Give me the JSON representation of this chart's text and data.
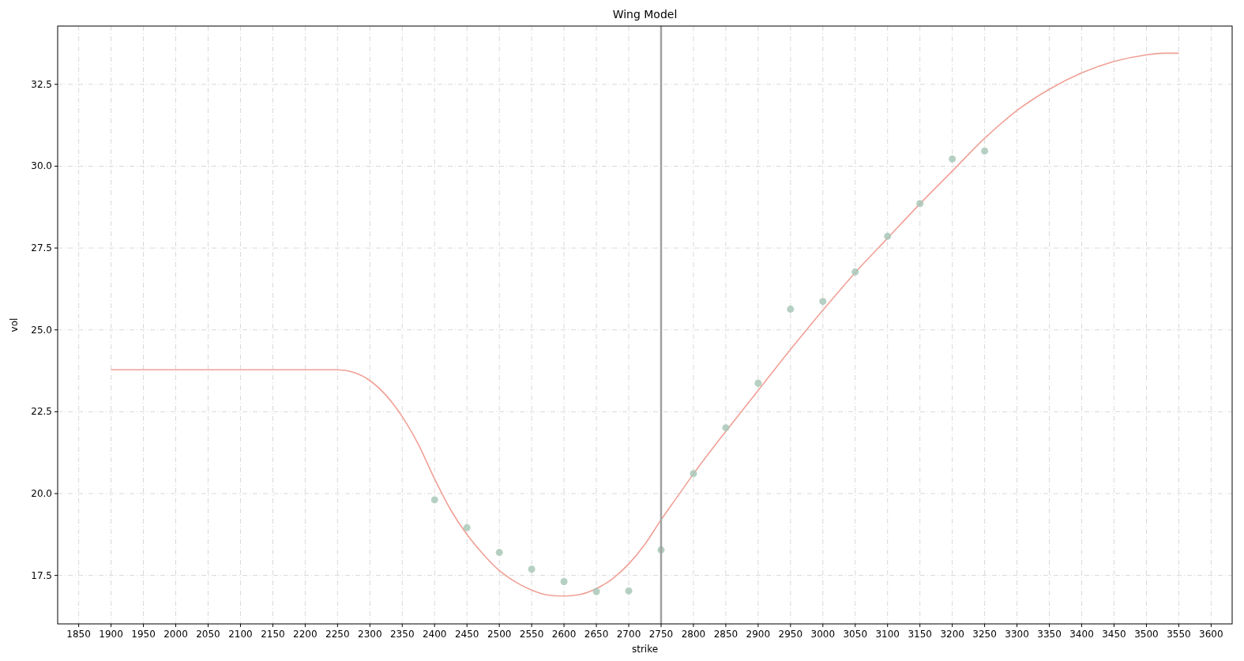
{
  "chart_data": {
    "type": "scatter",
    "title": "Wing Model",
    "xlabel": "strike",
    "ylabel": "vol",
    "xlim": [
      1817.5,
      3632.5
    ],
    "ylim": [
      16.02,
      34.28
    ],
    "xticks": [
      1850,
      1900,
      1950,
      2000,
      2050,
      2100,
      2150,
      2200,
      2250,
      2300,
      2350,
      2400,
      2450,
      2500,
      2550,
      2600,
      2650,
      2700,
      2750,
      2800,
      2850,
      2900,
      2950,
      3000,
      3050,
      3100,
      3150,
      3200,
      3250,
      3300,
      3350,
      3400,
      3450,
      3500,
      3550,
      3600
    ],
    "yticks": [
      17.5,
      {
        "value": 20,
        "label": "20.0"
      },
      22.5,
      {
        "value": 25,
        "label": "25.0"
      },
      27.5,
      {
        "value": 30,
        "label": "30.0"
      },
      32.5
    ],
    "grid": true,
    "series": [
      {
        "type": "line",
        "color": "#f0a096",
        "line_style": "solid",
        "x": [
          1900,
          2250,
          2275,
          2300,
          2325,
          2350,
          2375,
          2400,
          2425,
          2450,
          2475,
          2500,
          2525,
          2550,
          2575,
          2600,
          2625,
          2650,
          2675,
          2700,
          2725,
          2750,
          2775,
          2800,
          2850,
          2900,
          2950,
          3000,
          3050,
          3100,
          3150,
          3200,
          3250,
          3300,
          3350,
          3400,
          3450,
          3500,
          3525,
          3550
        ],
        "values": [
          23.78,
          23.78,
          23.7,
          23.45,
          23.0,
          22.35,
          21.5,
          20.45,
          19.5,
          18.75,
          18.15,
          17.65,
          17.3,
          17.05,
          16.9,
          16.87,
          16.92,
          17.1,
          17.4,
          17.85,
          18.45,
          19.2,
          19.9,
          20.6,
          21.9,
          23.15,
          24.4,
          25.6,
          26.75,
          27.8,
          28.85,
          29.85,
          30.85,
          31.7,
          32.35,
          32.85,
          33.2,
          33.4,
          33.45,
          33.45
        ]
      },
      {
        "marker": "circle",
        "color": "#a9c8b8",
        "x": [
          2400,
          2450,
          2500,
          2550,
          2600,
          2650,
          2700,
          2750,
          2800,
          2850,
          2900,
          2950,
          3000,
          3050,
          3100,
          3150,
          3200,
          3250
        ],
        "values": [
          19.81,
          18.96,
          18.2,
          17.69,
          17.31,
          17.01,
          17.03,
          18.28,
          20.61,
          22.01,
          23.37,
          25.63,
          25.87,
          26.77,
          27.86,
          28.86,
          30.22,
          30.46
        ]
      }
    ],
    "ref_lines": [
      {
        "axis": "x",
        "value": 2750,
        "color": "#a0a0a0",
        "line_style": "solid"
      }
    ]
  }
}
